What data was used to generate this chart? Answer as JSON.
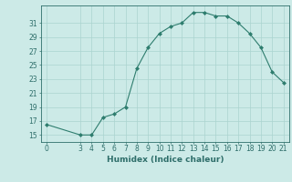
{
  "xlabel": "Humidex (Indice chaleur)",
  "x": [
    0,
    3,
    4,
    5,
    6,
    7,
    8,
    9,
    10,
    11,
    12,
    13,
    14,
    15,
    16,
    17,
    18,
    19,
    20,
    21
  ],
  "y": [
    16.5,
    15.0,
    15.0,
    17.5,
    18.0,
    19.0,
    24.5,
    27.5,
    29.5,
    30.5,
    31.0,
    32.5,
    32.5,
    32.0,
    32.0,
    31.0,
    29.5,
    27.5,
    24.0,
    22.5
  ],
  "line_color": "#2e7d6e",
  "marker": "D",
  "marker_size": 2.0,
  "bg_color": "#cceae7",
  "grid_color": "#aad4d0",
  "xlim": [
    -0.5,
    21.5
  ],
  "ylim": [
    14.0,
    33.5
  ],
  "yticks": [
    15,
    17,
    19,
    21,
    23,
    25,
    27,
    29,
    31
  ],
  "xticks": [
    0,
    3,
    4,
    5,
    6,
    7,
    8,
    9,
    10,
    11,
    12,
    13,
    14,
    15,
    16,
    17,
    18,
    19,
    20,
    21
  ],
  "tick_color": "#2e6e6a",
  "label_fontsize": 6.5,
  "tick_fontsize": 5.5
}
